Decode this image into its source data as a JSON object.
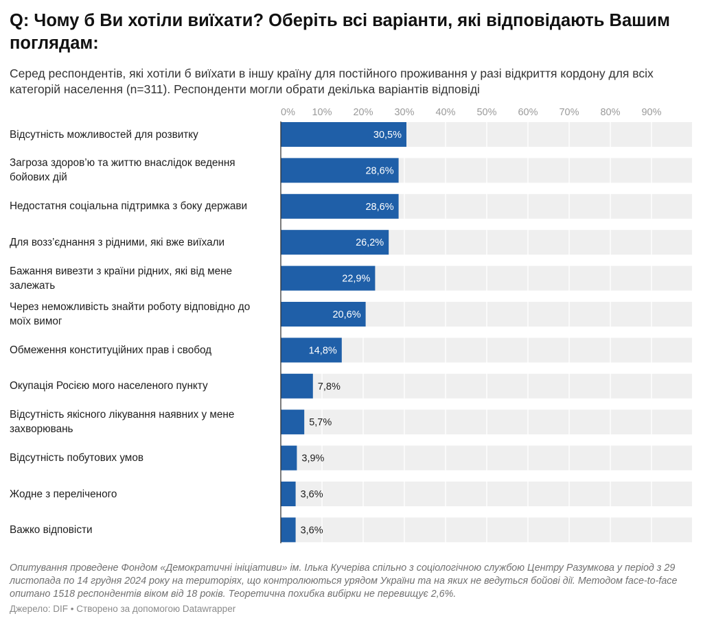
{
  "title": "Q: Чому б Ви хотіли виїхати? Оберіть всі варіанти, які відповідають Вашим поглядам:",
  "subtitle": "Серед респондентів, які хотіли б виїхати в іншу країну для постійного проживання у разі відкриття кордону для всіх категорій населення (n=311). Респонденти могли обрати декілька варіантів відповіді",
  "notes": "Опитування проведене Фондом «Демократичні ініціативи» ім. Ілька Кучеріва спільно з соціологічною службою Центру Разумкова у період з 29 листопада по 14 грудня 2024 року на територіях, що контролюються урядом України та на яких не ведуться бойові дії. Методом face-to-face опитано 1518 респондентів віком від 18 років. Теоретична похибка вибірки не перевищує 2,6%.",
  "source": "Джерело: DIF • Створено за допомогою Datawrapper",
  "colors": {
    "bar": "#1f5fa8",
    "track": "#efefef",
    "value_inside": "#ffffff",
    "value_outside": "#1d1d1d"
  },
  "chart_data": {
    "type": "bar",
    "orientation": "horizontal",
    "xlim": [
      0,
      100
    ],
    "xticks": [
      "0%",
      "10%",
      "20%",
      "30%",
      "40%",
      "50%",
      "60%",
      "70%",
      "80%",
      "90%"
    ],
    "categories": [
      "Відсутність можливостей для розвитку",
      "Загроза здоров’ю та життю внаслідок ведення бойових дій",
      "Недостатня соціальна підтримка з боку держави",
      "Для возз’єднання з рідними, які вже виїхали",
      "Бажання вивезти з країни рідних, які від мене залежать",
      "Через неможливість знайти роботу відповідно до моїх вимог",
      "Обмеження конституційних прав і свобод",
      "Окупація Росією мого населеного пункту",
      "Відсутність якісного лікування наявних у мене захворювань",
      "Відсутність побутових умов",
      "Жодне з переліченого",
      "Важко відповісти"
    ],
    "values": [
      30.5,
      28.6,
      28.6,
      26.2,
      22.9,
      20.6,
      14.8,
      7.8,
      5.7,
      3.9,
      3.6,
      3.6
    ],
    "value_labels": [
      "30,5%",
      "28,6%",
      "28,6%",
      "26,2%",
      "22,9%",
      "20,6%",
      "14,8%",
      "7,8%",
      "5,7%",
      "3,9%",
      "3,6%",
      "3,6%"
    ]
  }
}
